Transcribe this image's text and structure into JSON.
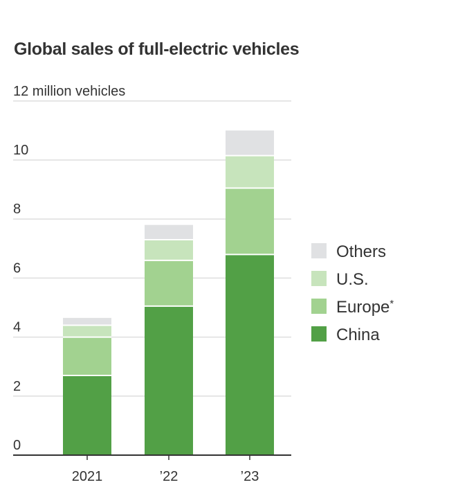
{
  "chart_data": {
    "type": "bar",
    "stacked": true,
    "title": "Global sales of full-electric vehicles",
    "ylabel": "",
    "xlabel": "",
    "unit_label": "12 million vehicles",
    "categories": [
      "2021",
      "’22",
      "’23"
    ],
    "ylim": [
      0,
      12
    ],
    "yticks": [
      0,
      2,
      4,
      6,
      8,
      10
    ],
    "grid": true,
    "legend_position": "right",
    "series": [
      {
        "name": "China",
        "note": "",
        "color": "#52a046",
        "values": [
          2.7,
          5.05,
          6.8
        ]
      },
      {
        "name": "Europe",
        "note": "*",
        "color": "#a2d290",
        "values": [
          1.3,
          1.55,
          2.25
        ]
      },
      {
        "name": "U.S.",
        "note": "",
        "color": "#c7e4bc",
        "values": [
          0.4,
          0.7,
          1.1
        ]
      },
      {
        "name": "Others",
        "note": "",
        "color": "#e0e1e3",
        "values": [
          0.25,
          0.5,
          0.85
        ]
      }
    ]
  }
}
